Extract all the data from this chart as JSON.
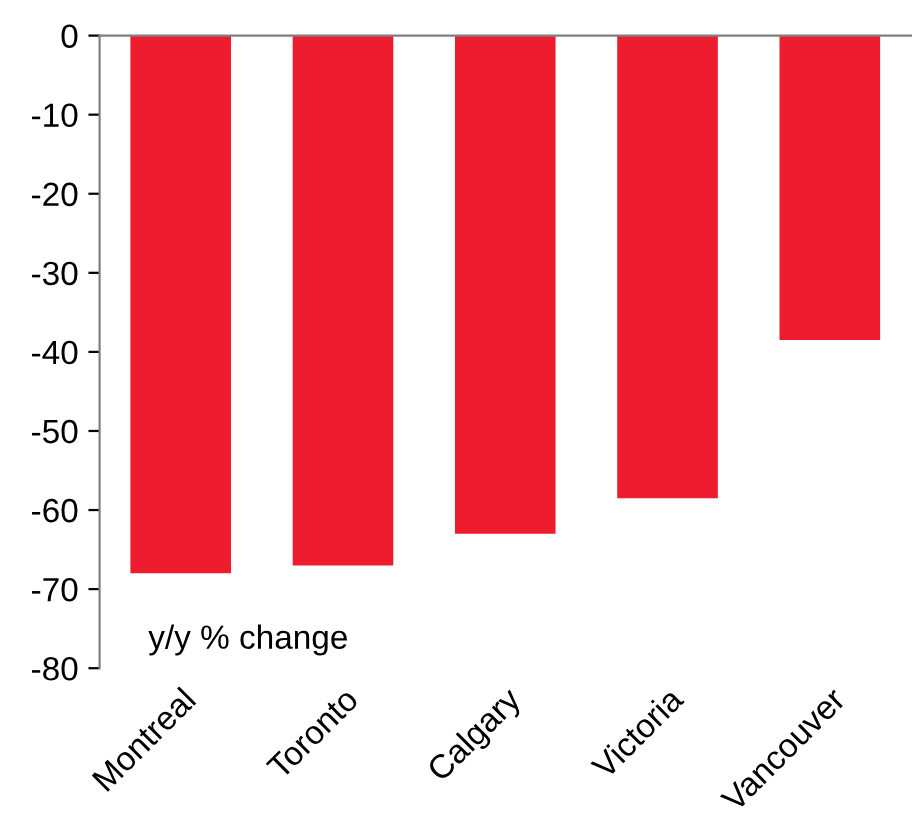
{
  "chart_data": {
    "type": "bar",
    "categories": [
      "Montreal",
      "Toronto",
      "Calgary",
      "Victoria",
      "Vancouver"
    ],
    "values": [
      -68,
      -67,
      -63,
      -58.5,
      -38.5
    ],
    "color": "#ed1c2e",
    "ylim": [
      -80,
      0
    ],
    "yticks": [
      -80,
      -70,
      -60,
      -50,
      -40,
      -30,
      -20,
      -10,
      0
    ],
    "grid": false,
    "annotations": [
      "y/y % change"
    ]
  }
}
